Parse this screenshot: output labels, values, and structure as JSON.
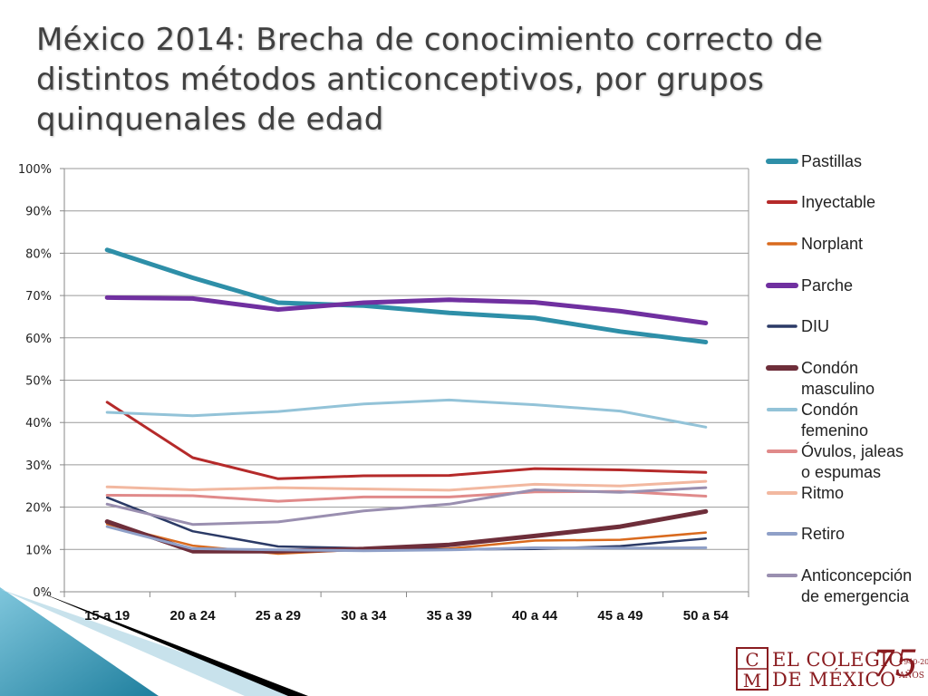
{
  "title": "México 2014: Brecha de conocimiento correcto de distintos métodos anticonceptivos, por grupos quinquenales de edad",
  "colors": {
    "Pastillas": "#2e8fa8",
    "Inyectable": "#b52a2a",
    "Norplant": "#d96a1e",
    "Parche": "#7030a0",
    "DIU": "#2b3a66",
    "Condon_masculino": "#6e2e3a",
    "Condon_femenino": "#93c3d8",
    "Ovulos": "#e08a8a",
    "Ritmo": "#f2b8a0",
    "Retiro": "#8fa0c8",
    "Anticoncepcion": "#9a8fb0"
  },
  "chart_data": {
    "type": "line",
    "title": "",
    "xlabel": "",
    "ylabel": "",
    "ylim": [
      0,
      100
    ],
    "yticks": [
      "0%",
      "10%",
      "20%",
      "30%",
      "40%",
      "50%",
      "60%",
      "70%",
      "80%",
      "90%",
      "100%"
    ],
    "grid": true,
    "legend_position": "right",
    "categories": [
      "15 a 19",
      "20 a 24",
      "25 a 29",
      "30 a 34",
      "35 a 39",
      "40 a 44",
      "45 a 49",
      "50 a 54"
    ],
    "series": [
      {
        "name": "Pastillas",
        "color_key": "Pastillas",
        "width": 5,
        "values": [
          80.8,
          74.2,
          68.3,
          67.6,
          65.9,
          64.7,
          61.5,
          59.0
        ]
      },
      {
        "name": "Inyectable",
        "color_key": "Inyectable",
        "width": 3,
        "values": [
          44.8,
          31.7,
          26.7,
          27.4,
          27.5,
          29.1,
          28.8,
          28.2
        ]
      },
      {
        "name": "Norplant",
        "color_key": "Norplant",
        "width": 2.5,
        "values": [
          16.0,
          10.9,
          9.0,
          10.0,
          10.2,
          12.1,
          12.3,
          14.0
        ]
      },
      {
        "name": "Parche",
        "color_key": "Parche",
        "width": 5,
        "values": [
          69.5,
          69.3,
          66.7,
          68.3,
          69.0,
          68.4,
          66.3,
          63.5
        ]
      },
      {
        "name": "DIU",
        "color_key": "DIU",
        "width": 2.5,
        "values": [
          22.3,
          14.3,
          10.7,
          10.3,
          10.0,
          10.1,
          10.8,
          12.6
        ]
      },
      {
        "name": "Condón masculino",
        "color_key": "Condon_masculino",
        "width": 5,
        "values": [
          16.6,
          9.6,
          9.6,
          10.1,
          11.1,
          13.2,
          15.4,
          19.0
        ]
      },
      {
        "name": "Condón femenino",
        "color_key": "Condon_femenino",
        "width": 3,
        "values": [
          42.4,
          41.6,
          42.6,
          44.4,
          45.3,
          44.2,
          42.7,
          38.9
        ]
      },
      {
        "name": "Óvulos, jaleas o espumas",
        "color_key": "Ovulos",
        "width": 3,
        "values": [
          22.8,
          22.7,
          21.4,
          22.4,
          22.4,
          23.6,
          23.7,
          22.6
        ]
      },
      {
        "name": "Ritmo",
        "color_key": "Ritmo",
        "width": 3,
        "values": [
          24.8,
          24.1,
          24.6,
          24.3,
          24.0,
          25.4,
          25.0,
          26.1
        ]
      },
      {
        "name": "Retiro",
        "color_key": "Retiro",
        "width": 3,
        "values": [
          15.4,
          10.2,
          9.9,
          9.7,
          9.9,
          10.4,
          10.3,
          10.4
        ]
      },
      {
        "name": "Anticoncepción de emergencia",
        "color_key": "Anticoncepcion",
        "width": 3,
        "values": [
          20.7,
          15.9,
          16.5,
          19.1,
          20.7,
          24.1,
          23.5,
          24.6
        ]
      }
    ]
  },
  "legend": [
    {
      "lines": [
        "Pastillas"
      ],
      "color_key": "Pastillas",
      "width": 5
    },
    {
      "lines": [
        "Inyectable"
      ],
      "color_key": "Inyectable",
      "width": 3
    },
    {
      "lines": [
        "Norplant"
      ],
      "color_key": "Norplant",
      "width": 2.5
    },
    {
      "lines": [
        "Parche"
      ],
      "color_key": "Parche",
      "width": 5
    },
    {
      "lines": [
        "DIU"
      ],
      "color_key": "DIU",
      "width": 2.5
    },
    {
      "lines": [
        "Condón",
        "masculino"
      ],
      "color_key": "Condon_masculino",
      "width": 5
    },
    {
      "lines": [
        "Condón",
        "femenino"
      ],
      "color_key": "Condon_femenino",
      "width": 3
    },
    {
      "lines": [
        "Óvulos, jaleas",
        "o espumas"
      ],
      "color_key": "Ovulos",
      "width": 3
    },
    {
      "lines": [
        "Ritmo"
      ],
      "color_key": "Ritmo",
      "width": 3
    },
    {
      "lines": [
        "Retiro"
      ],
      "color_key": "Retiro",
      "width": 3
    },
    {
      "lines": [
        "Anticoncepción",
        "de emergencia"
      ],
      "color_key": "Anticoncepcion",
      "width": 3
    }
  ],
  "logo": {
    "initials": "C M",
    "line1": "EL COLEGIO",
    "line2": "DE MÉXICO",
    "anniversary": "75",
    "years": "1940-2015",
    "anios": "AÑOS"
  }
}
